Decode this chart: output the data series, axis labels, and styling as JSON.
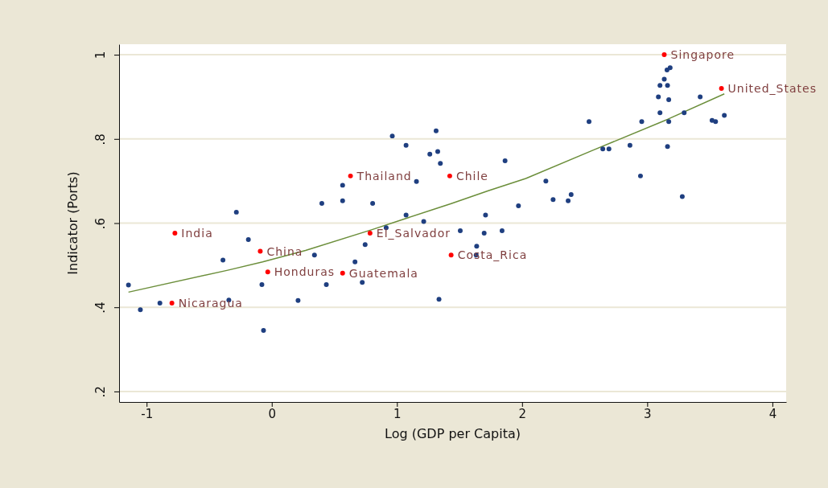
{
  "chart_data": {
    "type": "scatter",
    "xlabel": "Log (GDP per Capita)",
    "ylabel": "Indicator (Ports)",
    "xlim": [
      -1.22,
      4.11
    ],
    "ylim": [
      0.175,
      1.025
    ],
    "xticks": [
      -1,
      0,
      1,
      2,
      3,
      4
    ],
    "yticks": [
      {
        "value": 0.2,
        "label": ".2"
      },
      {
        "value": 0.4,
        "label": ".4"
      },
      {
        "value": 0.6,
        "label": ".6"
      },
      {
        "value": 0.8,
        "label": ".8"
      },
      1
    ],
    "grid": "y",
    "marker": "circle",
    "series": [
      {
        "type": "scatter",
        "color": "#1f3f80",
        "x": [
          -1.145,
          -1.05,
          -0.894,
          -0.39,
          -0.283,
          -0.187,
          -0.343,
          -0.079,
          -0.066,
          0.21,
          0.341,
          0.4,
          0.436,
          0.566,
          0.566,
          0.806,
          0.665,
          0.746,
          0.723,
          0.914,
          0.963,
          1.073,
          1.073,
          1.156,
          1.214,
          1.263,
          1.313,
          1.326,
          1.347,
          1.336,
          1.864,
          1.506,
          1.708,
          1.697,
          1.84,
          1.637,
          1.633,
          1.971,
          2.19,
          2.248,
          2.368,
          2.392,
          2.535,
          2.645,
          2.694,
          2.862,
          2.946,
          2.956,
          3.089,
          3.102,
          3.102,
          3.162,
          3.136,
          3.158,
          3.183,
          3.172,
          3.172,
          3.162,
          3.28,
          3.295,
          3.423,
          3.518,
          3.546,
          3.616
        ],
        "values": [
          0.453,
          0.394,
          0.41,
          0.512,
          0.626,
          0.561,
          0.417,
          0.454,
          0.345,
          0.416,
          0.524,
          0.647,
          0.454,
          0.69,
          0.653,
          0.647,
          0.508,
          0.549,
          0.459,
          0.589,
          0.807,
          0.785,
          0.619,
          0.699,
          0.604,
          0.764,
          0.819,
          0.77,
          0.742,
          0.419,
          0.748,
          0.582,
          0.619,
          0.576,
          0.582,
          0.545,
          0.524,
          0.641,
          0.7,
          0.656,
          0.653,
          0.668,
          0.841,
          0.776,
          0.776,
          0.785,
          0.712,
          0.841,
          0.9,
          0.862,
          0.927,
          0.927,
          0.942,
          0.964,
          0.969,
          0.893,
          0.841,
          0.782,
          0.663,
          0.862,
          0.9,
          0.844,
          0.841,
          0.856
        ]
      },
      {
        "type": "scatter",
        "color": "#ff0000",
        "x": [
          -0.774,
          -0.798,
          -0.092,
          -0.032,
          0.566,
          0.629,
          0.785,
          1.422,
          1.433,
          3.136,
          3.593
        ],
        "values": [
          0.576,
          0.41,
          0.533,
          0.484,
          0.481,
          0.712,
          0.576,
          0.712,
          0.524,
          1.0,
          0.92
        ]
      },
      {
        "type": "line",
        "color": "#6b8e3a",
        "marker": "none",
        "x": [
          -1.145,
          -0.352,
          -0.073,
          0.27,
          0.806,
          1.429,
          1.73,
          2.03,
          2.566,
          3.166,
          3.616
        ],
        "values": [
          0.436,
          0.488,
          0.508,
          0.535,
          0.585,
          0.646,
          0.677,
          0.706,
          0.773,
          0.847,
          0.907
        ]
      }
    ],
    "annotations": [
      {
        "text": "India",
        "x": -0.774,
        "y": 0.576
      },
      {
        "text": "Nicaragua",
        "x": -0.798,
        "y": 0.41
      },
      {
        "text": "China",
        "x": -0.092,
        "y": 0.533
      },
      {
        "text": "Honduras",
        "x": -0.032,
        "y": 0.484
      },
      {
        "text": "Guatemala",
        "x": 0.566,
        "y": 0.481
      },
      {
        "text": "Thailand",
        "x": 0.629,
        "y": 0.712
      },
      {
        "text": "El_Salvador",
        "x": 0.785,
        "y": 0.576
      },
      {
        "text": "Chile",
        "x": 1.422,
        "y": 0.712
      },
      {
        "text": "Costa_Rica",
        "x": 1.433,
        "y": 0.524
      },
      {
        "text": "Singapore",
        "x": 3.136,
        "y": 1.0
      },
      {
        "text": "United_States",
        "x": 3.593,
        "y": 0.92
      }
    ]
  }
}
